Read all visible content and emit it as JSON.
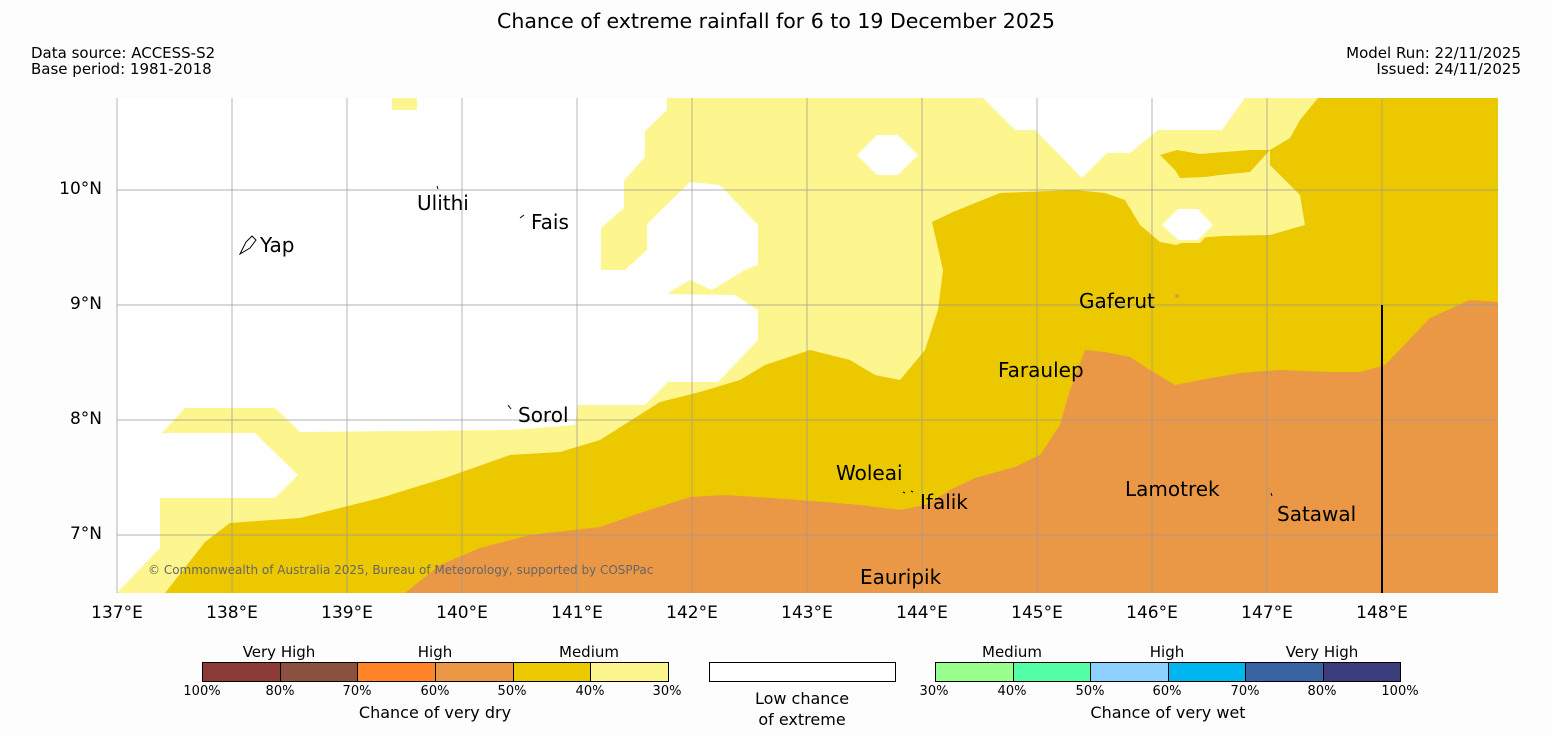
{
  "title": "Chance of extreme rainfall for 6 to 19 December 2025",
  "meta": {
    "data_source": "Data source: ACCESS-S2",
    "base_period": "Base period: 1981-2018",
    "model_run": "Model Run: 22/11/2025",
    "issued": "Issued: 24/11/2025"
  },
  "map": {
    "copyright": "© Commonwealth of Australia 2025, Bureau of Meteorology, supported by COSPPac",
    "lat_labels": [
      "10°N",
      "9°N",
      "8°N",
      "7°N"
    ],
    "lon_labels": [
      "137°E",
      "138°E",
      "139°E",
      "140°E",
      "141°E",
      "142°E",
      "143°E",
      "144°E",
      "145°E",
      "146°E",
      "147°E",
      "148°E"
    ],
    "islands": [
      "Yap",
      "Ulithi",
      "Fais",
      "Sorol",
      "Gaferut",
      "Faraulep",
      "Woleai",
      "Ifalik",
      "Lamotrek",
      "Satawal",
      "Eauripik"
    ],
    "colors": {
      "low": "#ffffff",
      "medium_dry": "#fdf58d",
      "medium_dry_40": "#ebc800",
      "high_dry": "#ea9846",
      "boundary": "#000000"
    }
  },
  "legend": {
    "dry": {
      "titles": [
        "Very High",
        "High",
        "Medium"
      ],
      "ticks": [
        "100%",
        "80%",
        "70%",
        "60%",
        "50%",
        "40%",
        "30%"
      ],
      "colors": [
        "#8b3a36",
        "#8b5140",
        "#ff8427",
        "#ea9846",
        "#ebc800",
        "#fdf58d"
      ],
      "caption": "Chance of very dry"
    },
    "low": {
      "caption_line1": "Low chance",
      "caption_line2": "of extreme",
      "color": "#ffffff"
    },
    "wet": {
      "titles": [
        "Medium",
        "High",
        "Very High"
      ],
      "ticks": [
        "30%",
        "40%",
        "50%",
        "60%",
        "70%",
        "80%",
        "100%"
      ],
      "colors": [
        "#99ff8c",
        "#52ffa6",
        "#8cd1ff",
        "#00b4f0",
        "#3864a4",
        "#3a3c7c"
      ],
      "caption": "Chance of very wet"
    }
  }
}
